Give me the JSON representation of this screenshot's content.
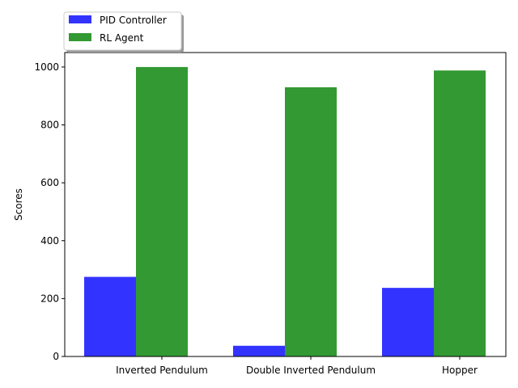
{
  "chart_data": {
    "type": "bar",
    "categories": [
      "Inverted Pendulum",
      "Double Inverted Pendulum",
      "Hopper"
    ],
    "series": [
      {
        "name": "PID Controller",
        "values": [
          275,
          37,
          237
        ],
        "color": "#3333ff"
      },
      {
        "name": "RL Agent",
        "values": [
          1000,
          930,
          988
        ],
        "color": "#339933"
      }
    ],
    "xlabel": "",
    "ylabel": "Scores",
    "ylim": [
      0,
      1050
    ],
    "yticks": [
      0,
      200,
      400,
      600,
      800,
      1000
    ],
    "grid": false,
    "legend_position": "upper-left, outside above plot"
  }
}
